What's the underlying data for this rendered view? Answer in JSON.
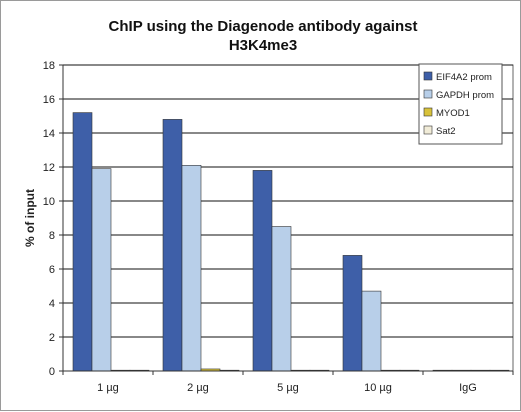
{
  "chart_data": {
    "type": "bar",
    "title": [
      "ChIP using the Diagenode antibody against",
      "H3K4me3"
    ],
    "xlabel": "",
    "ylabel": "% of input",
    "ylim": [
      0,
      18
    ],
    "yticks": [
      0,
      2,
      4,
      6,
      8,
      10,
      12,
      14,
      16,
      18
    ],
    "grid": true,
    "legend_position": "right",
    "categories": [
      "1 µg",
      "2 µg",
      "5 µg",
      "10 µg",
      "IgG"
    ],
    "series": [
      {
        "name": "EIF4A2 prom",
        "color": "#3e5fa8",
        "values": [
          15.2,
          14.8,
          11.8,
          6.8,
          0.02
        ]
      },
      {
        "name": "GAPDH prom",
        "color": "#b8cfe9",
        "values": [
          11.9,
          12.1,
          8.5,
          4.7,
          0.02
        ]
      },
      {
        "name": "MYOD1",
        "color": "#d8c23a",
        "values": [
          0.03,
          0.12,
          0.03,
          0.03,
          0.01
        ]
      },
      {
        "name": "Sat2",
        "color": "#f1ecd8",
        "values": [
          0.02,
          0.04,
          0.02,
          0.02,
          0.01
        ]
      }
    ]
  }
}
